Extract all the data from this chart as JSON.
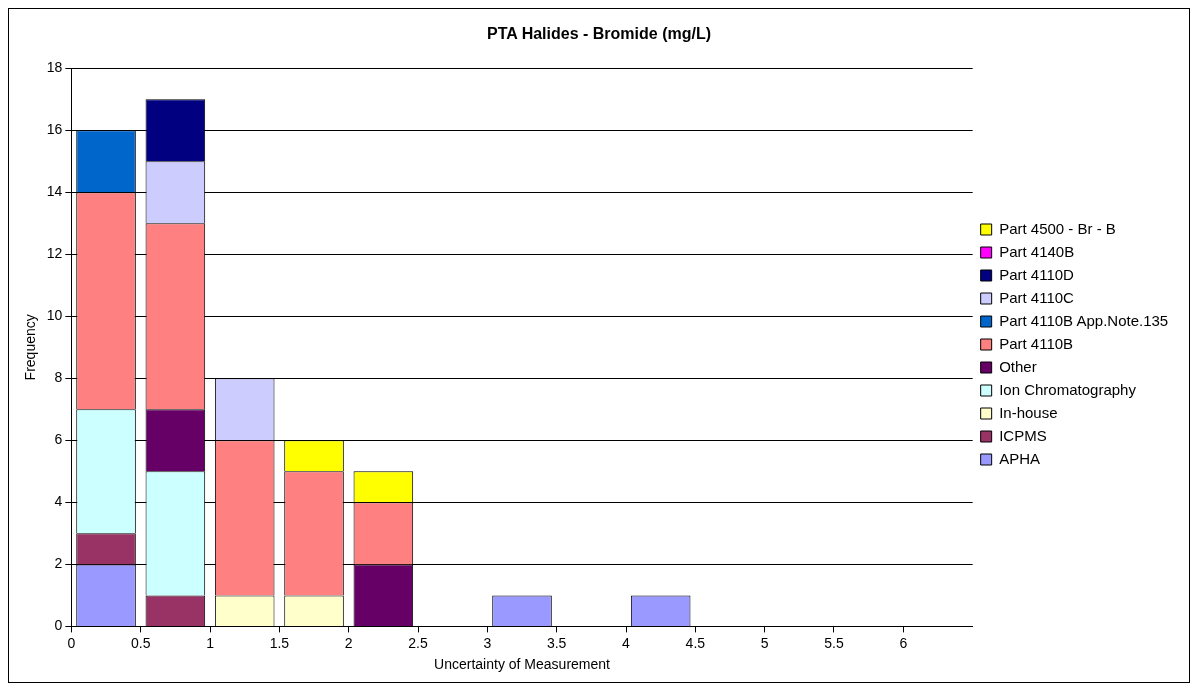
{
  "chart_data": {
    "type": "bar",
    "title": "PTA Halides - Bromide (mg/L)",
    "xlabel": "Uncertainty of Measurement",
    "ylabel": "Frequency",
    "x": [
      0.25,
      0.75,
      1.25,
      1.75,
      2.25,
      2.75,
      3.25,
      3.75,
      4.25
    ],
    "series": [
      {
        "name": "APHA",
        "color": "#9999ff",
        "values": [
          2,
          null,
          null,
          null,
          null,
          null,
          1,
          null,
          1
        ]
      },
      {
        "name": "ICPMS",
        "color": "#993366",
        "values": [
          1,
          1,
          null,
          null,
          null,
          null,
          null,
          null,
          null
        ]
      },
      {
        "name": "In-house",
        "color": "#ffffcc",
        "values": [
          null,
          null,
          1,
          1,
          null,
          null,
          null,
          null,
          null
        ]
      },
      {
        "name": "Ion Chromatography",
        "color": "#ccffff",
        "values": [
          4,
          4,
          null,
          null,
          null,
          null,
          null,
          null,
          null
        ]
      },
      {
        "name": "Other",
        "color": "#660066",
        "values": [
          null,
          2,
          null,
          null,
          2,
          null,
          null,
          null,
          null
        ]
      },
      {
        "name": "Part 4110B",
        "color": "#ff8080",
        "values": [
          7,
          6,
          5,
          4,
          2,
          null,
          null,
          null,
          null
        ]
      },
      {
        "name": "Part 4110B App.Note.135",
        "color": "#0066cc",
        "values": [
          2,
          null,
          null,
          null,
          null,
          null,
          null,
          null,
          null
        ]
      },
      {
        "name": "Part 4110C",
        "color": "#ccccff",
        "values": [
          null,
          2,
          2,
          null,
          null,
          null,
          null,
          null,
          null
        ]
      },
      {
        "name": "Part 4110D",
        "color": "#000080",
        "values": [
          null,
          2,
          null,
          null,
          null,
          null,
          null,
          null,
          null
        ]
      },
      {
        "name": "Part 4140B",
        "color": "#ff00ff",
        "values": [
          null,
          null,
          null,
          null,
          null,
          null,
          null,
          null,
          null
        ]
      },
      {
        "name": "Part 4500 - Br - B",
        "color": "#ffff00",
        "values": [
          null,
          null,
          null,
          1,
          1,
          null,
          null,
          null,
          null
        ]
      }
    ],
    "stacked": true,
    "xlim": [
      0,
      6.5
    ],
    "xticks": [
      0,
      0.5,
      1,
      1.5,
      2,
      2.5,
      3,
      3.5,
      4,
      4.5,
      5,
      5.5,
      6
    ],
    "ylim": [
      0,
      18
    ],
    "yticks": [
      0,
      2,
      4,
      6,
      8,
      10,
      12,
      14,
      16,
      18
    ],
    "grid": "y",
    "legend": "right"
  }
}
